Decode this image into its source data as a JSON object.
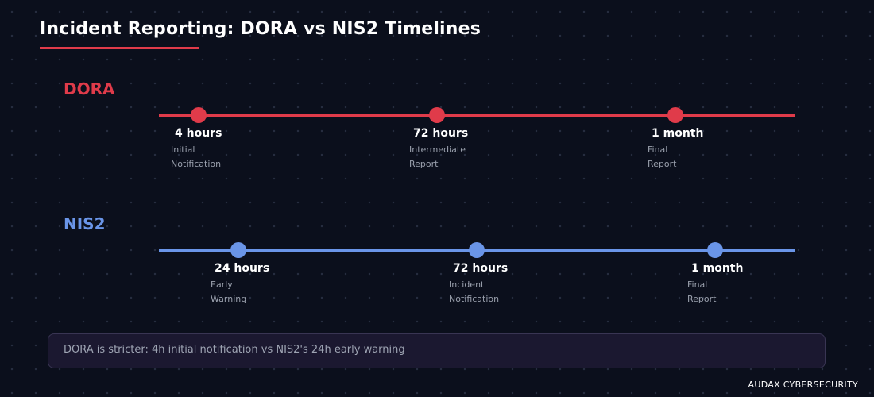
{
  "title": "Incident Reporting: DORA vs NIS2 Timelines",
  "colors": {
    "background": "#0b0f1c",
    "dora": "#e03b4a",
    "nis2": "#6a95e8",
    "note_background": "#1b1830"
  },
  "tracks": [
    {
      "label": "DORA",
      "milestones": [
        {
          "time": "4 hours",
          "desc_line1": "Initial",
          "desc_line2": "Notification"
        },
        {
          "time": "72 hours",
          "desc_line1": "Intermediate",
          "desc_line2": "Report"
        },
        {
          "time": "1 month",
          "desc_line1": "Final",
          "desc_line2": "Report"
        }
      ]
    },
    {
      "label": "NIS2",
      "milestones": [
        {
          "time": "24 hours",
          "desc_line1": "Early",
          "desc_line2": "Warning"
        },
        {
          "time": "72 hours",
          "desc_line1": "Incident",
          "desc_line2": "Notification"
        },
        {
          "time": "1 month",
          "desc_line1": "Final",
          "desc_line2": "Report"
        }
      ]
    }
  ],
  "note": "DORA is stricter: 4h initial notification vs NIS2's 24h early warning",
  "brand": "AUDAX CYBERSECURITY"
}
